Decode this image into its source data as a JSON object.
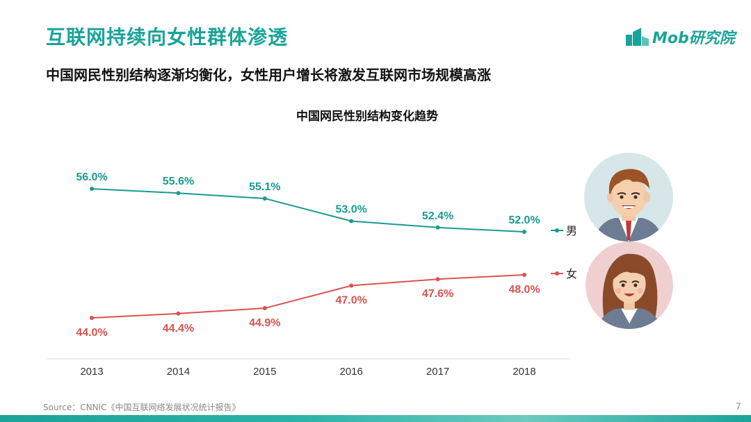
{
  "header": {
    "title": "互联网持续向女性群体渗透",
    "subtitle": "中国网民性别结构逐渐均衡化，女性用户增长将激发互联网市场规模高涨",
    "logo_text": "Mob研究院"
  },
  "colors": {
    "accent": "#1aa39a",
    "male": "#1a9a92",
    "female": "#d9534f"
  },
  "chart_data": {
    "type": "line",
    "title": "中国网民性别结构变化趋势",
    "xlabel": "",
    "ylabel": "",
    "categories": [
      "2013",
      "2014",
      "2015",
      "2016",
      "2017",
      "2018"
    ],
    "ylim": [
      40,
      60
    ],
    "grid": false,
    "legend_position": "right",
    "series": [
      {
        "name": "男",
        "values": [
          56.0,
          55.6,
          55.1,
          53.0,
          52.4,
          52.0
        ],
        "labels": [
          "56.0%",
          "55.6%",
          "55.1%",
          "53.0%",
          "52.4%",
          "52.0%"
        ],
        "color": "#1a9a92"
      },
      {
        "name": "女",
        "values": [
          44.0,
          44.4,
          44.9,
          47.0,
          47.6,
          48.0
        ],
        "labels": [
          "44.0%",
          "44.4%",
          "44.9%",
          "47.0%",
          "47.6%",
          "48.0%"
        ],
        "color": "#d9534f"
      }
    ]
  },
  "avatars": {
    "male": "man-avatar-icon",
    "female": "woman-avatar-icon"
  },
  "footer": {
    "source": "Source：CNNIC《中国互联网络发展状况统计报告》",
    "page_number": "7"
  }
}
